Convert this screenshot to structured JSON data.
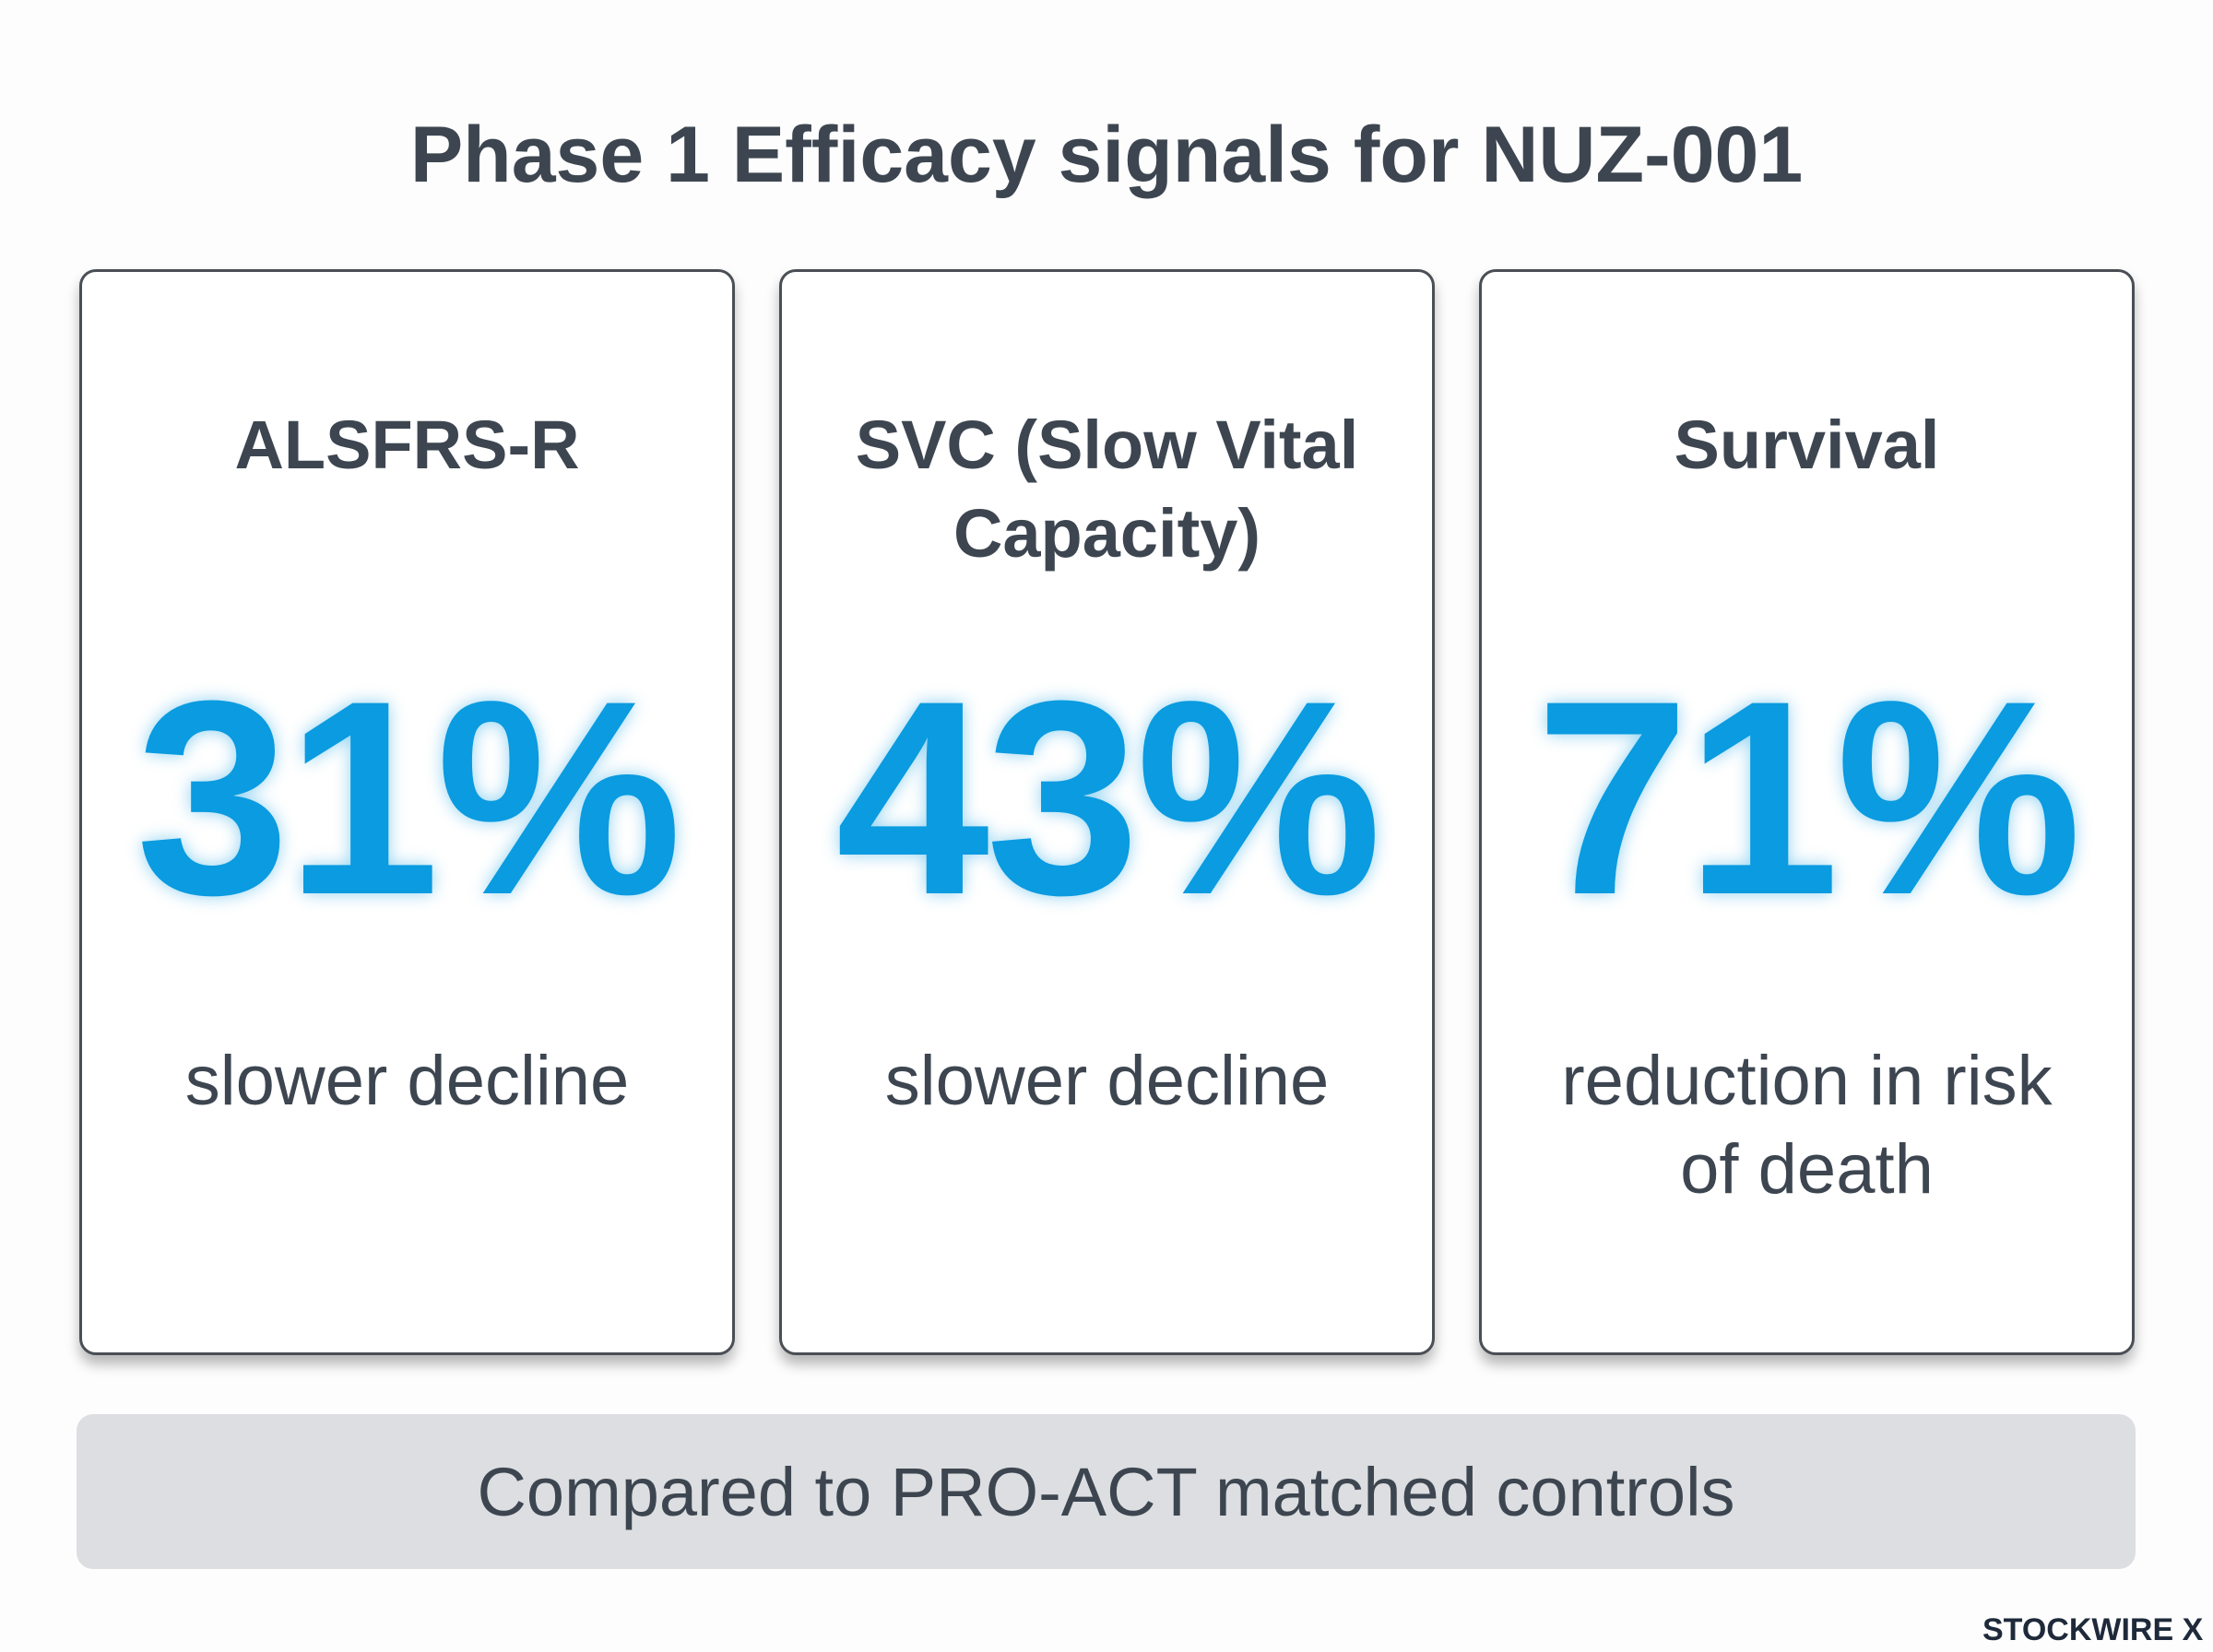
{
  "header": {
    "title": "Phase 1 Efficacy signals for NUZ-001"
  },
  "cards": [
    {
      "label": "ALSFRS-R",
      "value": "31%",
      "caption": "slower decline"
    },
    {
      "label": "SVC (Slow Vital Capacity)",
      "value": "43%",
      "caption": "slower decline"
    },
    {
      "label": "Survival",
      "value": "71%",
      "caption": "reduction in risk of death"
    }
  ],
  "footer": {
    "note": "Compared to PRO-ACT matched controls"
  },
  "brand": "STOCKWIRE X"
}
